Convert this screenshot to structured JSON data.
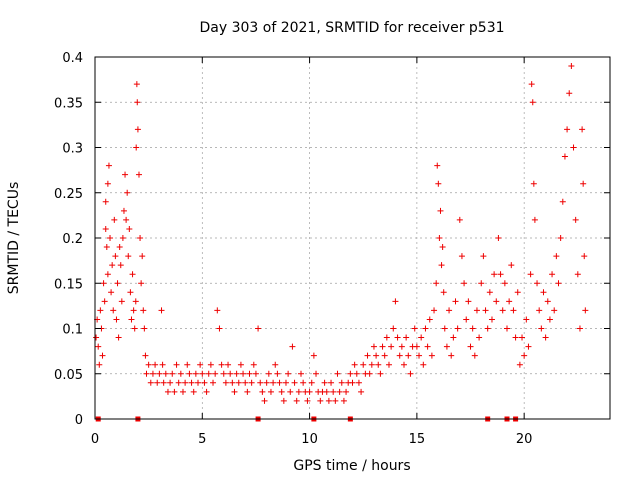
{
  "chart_data": {
    "type": "scatter",
    "title": "Day 303 of 2021, SRMTID for receiver p531",
    "xlabel": "GPS time / hours",
    "ylabel": "SRMTID / TECUs",
    "xlim": [
      0,
      24
    ],
    "ylim": [
      0,
      0.4
    ],
    "x_ticks": [
      0,
      5,
      10,
      15,
      20
    ],
    "x_tick_labels": [
      "0",
      "5",
      "10",
      "15",
      "20"
    ],
    "y_ticks": [
      0,
      0.05,
      0.1,
      0.15,
      0.2,
      0.25,
      0.3,
      0.35,
      0.4
    ],
    "y_tick_labels": [
      "0",
      "0.05",
      "0.1",
      "0.15",
      "0.2",
      "0.25",
      "0.3",
      "0.35",
      "0.4"
    ],
    "grid": true,
    "marker": "plus",
    "color": "#ee0000",
    "series": [
      {
        "name": "SRMTID",
        "points": [
          [
            0.05,
            0.09
          ],
          [
            0.1,
            0.11
          ],
          [
            0.15,
            0.08
          ],
          [
            0.2,
            0.06
          ],
          [
            0.25,
            0.12
          ],
          [
            0.3,
            0.1
          ],
          [
            0.35,
            0.07
          ],
          [
            0.4,
            0.15
          ],
          [
            0.45,
            0.13
          ],
          [
            0.5,
            0.21
          ],
          [
            0.5,
            0.24
          ],
          [
            0.55,
            0.19
          ],
          [
            0.6,
            0.16
          ],
          [
            0.6,
            0.26
          ],
          [
            0.65,
            0.28
          ],
          [
            0.7,
            0.2
          ],
          [
            0.75,
            0.14
          ],
          [
            0.8,
            0.17
          ],
          [
            0.85,
            0.12
          ],
          [
            0.9,
            0.22
          ],
          [
            0.95,
            0.18
          ],
          [
            1.0,
            0.11
          ],
          [
            1.05,
            0.15
          ],
          [
            1.1,
            0.09
          ],
          [
            1.15,
            0.19
          ],
          [
            1.2,
            0.17
          ],
          [
            1.25,
            0.13
          ],
          [
            1.3,
            0.2
          ],
          [
            1.35,
            0.23
          ],
          [
            1.4,
            0.27
          ],
          [
            1.45,
            0.22
          ],
          [
            1.5,
            0.25
          ],
          [
            1.55,
            0.18
          ],
          [
            1.6,
            0.21
          ],
          [
            1.65,
            0.14
          ],
          [
            1.7,
            0.11
          ],
          [
            1.75,
            0.16
          ],
          [
            1.8,
            0.12
          ],
          [
            1.85,
            0.1
          ],
          [
            1.9,
            0.13
          ],
          [
            1.92,
            0.3
          ],
          [
            1.95,
            0.37
          ],
          [
            1.97,
            0.35
          ],
          [
            2.0,
            0.32
          ],
          [
            2.05,
            0.27
          ],
          [
            2.1,
            0.2
          ],
          [
            2.15,
            0.15
          ],
          [
            2.2,
            0.18
          ],
          [
            2.25,
            0.12
          ],
          [
            2.3,
            0.1
          ],
          [
            2.35,
            0.07
          ],
          [
            2.4,
            0.05
          ],
          [
            2.5,
            0.06
          ],
          [
            2.6,
            0.04
          ],
          [
            2.7,
            0.05
          ],
          [
            2.8,
            0.06
          ],
          [
            2.9,
            0.04
          ],
          [
            3.0,
            0.05
          ],
          [
            3.1,
            0.12
          ],
          [
            3.15,
            0.06
          ],
          [
            3.2,
            0.04
          ],
          [
            3.3,
            0.05
          ],
          [
            3.4,
            0.03
          ],
          [
            3.5,
            0.04
          ],
          [
            3.6,
            0.05
          ],
          [
            3.7,
            0.03
          ],
          [
            3.8,
            0.06
          ],
          [
            3.9,
            0.04
          ],
          [
            4.0,
            0.05
          ],
          [
            4.1,
            0.03
          ],
          [
            4.2,
            0.04
          ],
          [
            4.3,
            0.06
          ],
          [
            4.4,
            0.05
          ],
          [
            4.5,
            0.04
          ],
          [
            4.6,
            0.03
          ],
          [
            4.7,
            0.05
          ],
          [
            4.8,
            0.04
          ],
          [
            4.9,
            0.06
          ],
          [
            5.0,
            0.05
          ],
          [
            5.1,
            0.04
          ],
          [
            5.2,
            0.03
          ],
          [
            5.3,
            0.05
          ],
          [
            5.4,
            0.06
          ],
          [
            5.5,
            0.04
          ],
          [
            5.6,
            0.05
          ],
          [
            5.7,
            0.12
          ],
          [
            5.8,
            0.1
          ],
          [
            5.9,
            0.06
          ],
          [
            6.0,
            0.05
          ],
          [
            6.1,
            0.04
          ],
          [
            6.2,
            0.06
          ],
          [
            6.3,
            0.05
          ],
          [
            6.4,
            0.04
          ],
          [
            6.5,
            0.03
          ],
          [
            6.6,
            0.05
          ],
          [
            6.7,
            0.04
          ],
          [
            6.8,
            0.06
          ],
          [
            6.9,
            0.05
          ],
          [
            7.0,
            0.04
          ],
          [
            7.1,
            0.03
          ],
          [
            7.2,
            0.05
          ],
          [
            7.3,
            0.04
          ],
          [
            7.4,
            0.06
          ],
          [
            7.5,
            0.05
          ],
          [
            7.6,
            0.1
          ],
          [
            7.7,
            0.04
          ],
          [
            7.8,
            0.03
          ],
          [
            7.9,
            0.02
          ],
          [
            8.0,
            0.04
          ],
          [
            8.1,
            0.05
          ],
          [
            8.2,
            0.03
          ],
          [
            8.3,
            0.04
          ],
          [
            8.4,
            0.06
          ],
          [
            8.5,
            0.05
          ],
          [
            8.6,
            0.04
          ],
          [
            8.7,
            0.03
          ],
          [
            8.8,
            0.02
          ],
          [
            8.9,
            0.04
          ],
          [
            9.0,
            0.05
          ],
          [
            9.1,
            0.03
          ],
          [
            9.2,
            0.08
          ],
          [
            9.3,
            0.04
          ],
          [
            9.4,
            0.02
          ],
          [
            9.5,
            0.03
          ],
          [
            9.6,
            0.05
          ],
          [
            9.7,
            0.04
          ],
          [
            9.8,
            0.03
          ],
          [
            9.9,
            0.02
          ],
          [
            10.0,
            0.03
          ],
          [
            10.1,
            0.04
          ],
          [
            10.2,
            0.07
          ],
          [
            10.3,
            0.05
          ],
          [
            10.4,
            0.03
          ],
          [
            10.5,
            0.02
          ],
          [
            10.6,
            0.03
          ],
          [
            10.7,
            0.04
          ],
          [
            10.8,
            0.03
          ],
          [
            10.9,
            0.02
          ],
          [
            11.0,
            0.04
          ],
          [
            11.1,
            0.03
          ],
          [
            11.2,
            0.02
          ],
          [
            11.3,
            0.05
          ],
          [
            11.4,
            0.03
          ],
          [
            11.5,
            0.04
          ],
          [
            11.6,
            0.02
          ],
          [
            11.7,
            0.03
          ],
          [
            11.8,
            0.04
          ],
          [
            11.9,
            0.05
          ],
          [
            12.0,
            0.04
          ],
          [
            12.1,
            0.06
          ],
          [
            12.2,
            0.05
          ],
          [
            12.3,
            0.04
          ],
          [
            12.4,
            0.03
          ],
          [
            12.5,
            0.06
          ],
          [
            12.6,
            0.05
          ],
          [
            12.7,
            0.07
          ],
          [
            12.8,
            0.05
          ],
          [
            12.9,
            0.06
          ],
          [
            13.0,
            0.08
          ],
          [
            13.1,
            0.07
          ],
          [
            13.2,
            0.06
          ],
          [
            13.3,
            0.05
          ],
          [
            13.4,
            0.08
          ],
          [
            13.5,
            0.07
          ],
          [
            13.6,
            0.09
          ],
          [
            13.7,
            0.06
          ],
          [
            13.8,
            0.08
          ],
          [
            13.9,
            0.1
          ],
          [
            14.0,
            0.13
          ],
          [
            14.1,
            0.09
          ],
          [
            14.2,
            0.07
          ],
          [
            14.3,
            0.08
          ],
          [
            14.4,
            0.06
          ],
          [
            14.5,
            0.09
          ],
          [
            14.6,
            0.07
          ],
          [
            14.7,
            0.05
          ],
          [
            14.8,
            0.08
          ],
          [
            14.9,
            0.1
          ],
          [
            15.0,
            0.08
          ],
          [
            15.1,
            0.07
          ],
          [
            15.2,
            0.09
          ],
          [
            15.3,
            0.06
          ],
          [
            15.4,
            0.1
          ],
          [
            15.5,
            0.08
          ],
          [
            15.6,
            0.11
          ],
          [
            15.7,
            0.07
          ],
          [
            15.8,
            0.12
          ],
          [
            15.9,
            0.15
          ],
          [
            15.95,
            0.28
          ],
          [
            16.0,
            0.26
          ],
          [
            16.05,
            0.2
          ],
          [
            16.1,
            0.23
          ],
          [
            16.15,
            0.17
          ],
          [
            16.2,
            0.19
          ],
          [
            16.25,
            0.14
          ],
          [
            16.3,
            0.1
          ],
          [
            16.4,
            0.08
          ],
          [
            16.5,
            0.12
          ],
          [
            16.6,
            0.07
          ],
          [
            16.7,
            0.09
          ],
          [
            16.8,
            0.13
          ],
          [
            16.9,
            0.1
          ],
          [
            17.0,
            0.22
          ],
          [
            17.1,
            0.18
          ],
          [
            17.2,
            0.15
          ],
          [
            17.3,
            0.11
          ],
          [
            17.4,
            0.13
          ],
          [
            17.5,
            0.08
          ],
          [
            17.6,
            0.1
          ],
          [
            17.7,
            0.07
          ],
          [
            17.8,
            0.12
          ],
          [
            17.9,
            0.09
          ],
          [
            18.0,
            0.15
          ],
          [
            18.1,
            0.18
          ],
          [
            18.2,
            0.12
          ],
          [
            18.3,
            0.1
          ],
          [
            18.4,
            0.14
          ],
          [
            18.5,
            0.11
          ],
          [
            18.6,
            0.16
          ],
          [
            18.7,
            0.13
          ],
          [
            18.8,
            0.2
          ],
          [
            18.9,
            0.16
          ],
          [
            19.0,
            0.12
          ],
          [
            19.1,
            0.15
          ],
          [
            19.2,
            0.1
          ],
          [
            19.3,
            0.13
          ],
          [
            19.4,
            0.17
          ],
          [
            19.5,
            0.12
          ],
          [
            19.6,
            0.09
          ],
          [
            19.7,
            0.14
          ],
          [
            19.8,
            0.06
          ],
          [
            19.9,
            0.09
          ],
          [
            20.0,
            0.07
          ],
          [
            20.1,
            0.11
          ],
          [
            20.2,
            0.08
          ],
          [
            20.3,
            0.16
          ],
          [
            20.35,
            0.37
          ],
          [
            20.4,
            0.35
          ],
          [
            20.45,
            0.26
          ],
          [
            20.5,
            0.22
          ],
          [
            20.6,
            0.15
          ],
          [
            20.7,
            0.12
          ],
          [
            20.8,
            0.1
          ],
          [
            20.9,
            0.14
          ],
          [
            21.0,
            0.09
          ],
          [
            21.1,
            0.13
          ],
          [
            21.2,
            0.11
          ],
          [
            21.3,
            0.16
          ],
          [
            21.4,
            0.12
          ],
          [
            21.5,
            0.18
          ],
          [
            21.6,
            0.15
          ],
          [
            21.7,
            0.2
          ],
          [
            21.8,
            0.24
          ],
          [
            21.9,
            0.29
          ],
          [
            22.0,
            0.32
          ],
          [
            22.1,
            0.36
          ],
          [
            22.2,
            0.39
          ],
          [
            22.3,
            0.3
          ],
          [
            22.4,
            0.22
          ],
          [
            22.5,
            0.16
          ],
          [
            22.6,
            0.1
          ],
          [
            22.7,
            0.32
          ],
          [
            22.75,
            0.26
          ],
          [
            22.8,
            0.18
          ],
          [
            22.85,
            0.12
          ]
        ]
      }
    ],
    "zero_points": [
      0.15,
      2.0,
      7.6,
      10.2,
      11.9,
      18.3,
      19.2,
      19.6
    ]
  }
}
